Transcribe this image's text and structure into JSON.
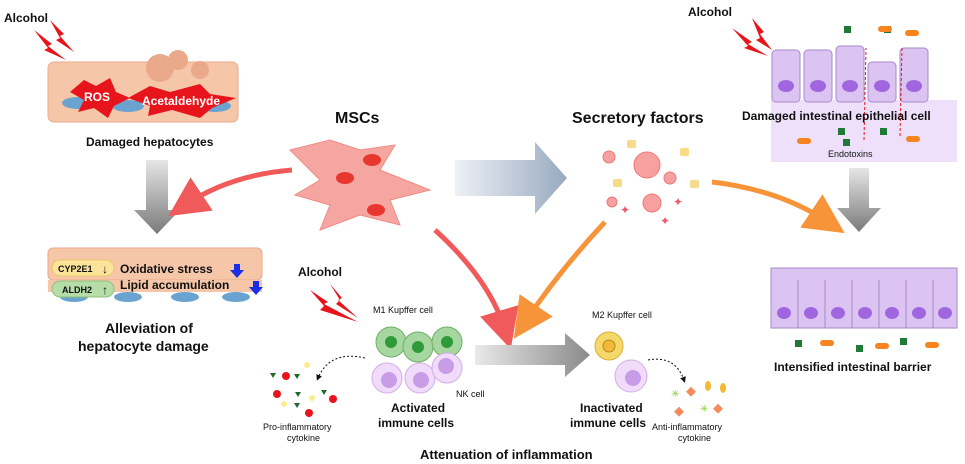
{
  "colors": {
    "alcohol_bolt": "#e8141c",
    "hepatocyte": "#f6c6a8",
    "nucleus_blue": "#6aa3cf",
    "msc": "#f6a6a0",
    "intestinal_cell": "#dcc4f2",
    "gray_arrow": "#8a8a8a",
    "red_arrow": "#f05a5a",
    "orange_arrow": "#f7943a",
    "blue_arrow": "#a9b8cc",
    "m1_green": "#a6d7a0",
    "m2_yellow": "#f5d86a",
    "nk_purple": "#c99ce8"
  },
  "top_left": {
    "alcohol": "Alcohol",
    "ros": "ROS",
    "acetaldehyde": "Acetaldehyde",
    "caption": "Damaged hepatocytes"
  },
  "msc": {
    "label": "MSCs"
  },
  "secretory": {
    "label": "Secretory factors"
  },
  "top_right": {
    "alcohol": "Alcohol",
    "caption": "Damaged intestinal epithelial cell",
    "endotoxins": "Endotoxins"
  },
  "bottom_left": {
    "cyp2e1": "CYP2E1",
    "cyp2e1_arrow": "↓",
    "aldh2": "ALDH2",
    "aldh2_arrow": "↑",
    "oxidative": "Oxidative stress",
    "lipid": "Lipid accumulation",
    "caption_line1": "Alleviation of",
    "caption_line2": "hepatocyte damage"
  },
  "inflammation": {
    "alcohol": "Alcohol",
    "m1": "M1 Kupffer cell",
    "nk": "NK cell",
    "activated_line1": "Activated",
    "activated_line2": "immune cells",
    "pro_line1": "Pro-inflammatory",
    "pro_line2": "cytokine",
    "m2": "M2 Kupffer cell",
    "inactivated_line1": "Inactivated",
    "inactivated_line2": "immune cells",
    "anti_line1": "Anti-inflammatory",
    "anti_line2": "cytokine",
    "caption": "Attenuation of inflammation"
  },
  "bottom_right": {
    "caption": "Intensified intestinal barrier"
  }
}
